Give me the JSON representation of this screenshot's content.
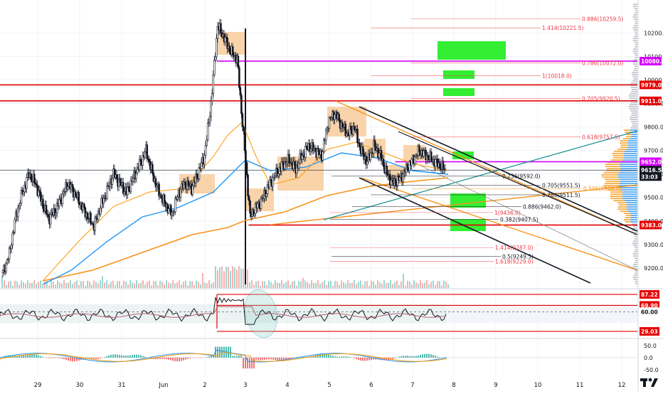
{
  "colors": {
    "bull": "#26a69a",
    "bear": "#ef5350",
    "candle": "#131722",
    "red_line": "#e50000",
    "magenta_line": "#d500f9",
    "fib_red": "#f23645",
    "orange_line": "#f7931a",
    "orange_thin": "#ff9800",
    "blue_ma": "#2196f3",
    "teal_line": "#138d8d",
    "green_box": "#33ee33",
    "orange_box": "#f7c58f",
    "volume_blue": "#4aa3f0",
    "volume_orange": "#f7a93a",
    "grid": "#f0f3fa",
    "axis_text": "#131722",
    "black_label_bg": "#131722"
  },
  "chart_data": [
    {
      "type": "candlestick",
      "title": "",
      "x_ticks": [
        "29",
        "30",
        "31",
        "Jun",
        "2",
        "3",
        "4",
        "5",
        "6",
        "7",
        "8",
        "9",
        "10",
        "11",
        "12"
      ],
      "y_ticks": [
        9200.0,
        9300.0,
        9400.0,
        9500.0,
        9600.0,
        9700.0,
        9800.0,
        9900.0,
        10000.0,
        10100.0,
        10200.0
      ],
      "ylim": [
        9115,
        10340
      ],
      "price_labels": [
        {
          "text": "10080.0",
          "value": 10080.0,
          "color": "#d500f9"
        },
        {
          "text": "9979.0",
          "value": 9979.0,
          "color": "#e50000"
        },
        {
          "text": "9911.0",
          "value": 9911.0,
          "color": "#e50000"
        },
        {
          "text": "9652.0",
          "value": 9652.0,
          "color": "#d500f9"
        },
        {
          "text": "9616.5",
          "value": 9616.5,
          "color": "#131722"
        },
        {
          "text": "33:03",
          "value": 9589.0,
          "color": "#131722"
        },
        {
          "text": "9383.0",
          "value": 9383.0,
          "color": "#e50000"
        }
      ],
      "horizontal_levels": [
        {
          "value": 10080,
          "color": "#d500f9",
          "x_start": 0.34
        },
        {
          "value": 9979,
          "color": "#e50000",
          "x_start": 0.0
        },
        {
          "value": 9911,
          "color": "#e50000",
          "x_start": 0.0
        },
        {
          "value": 9652,
          "color": "#d500f9",
          "x_start": 0.62
        },
        {
          "value": 9383,
          "color": "#e50000",
          "x_start": 0.39
        }
      ],
      "fib_levels": [
        {
          "label": "0.886(10259.5)",
          "value": 10259.5,
          "color": "#f23645"
        },
        {
          "label": "1.414(10221.5)",
          "value": 10221.5,
          "color": "#f23645"
        },
        {
          "label": "0.786(10072.0)",
          "value": 10072.0,
          "color": "#f23645"
        },
        {
          "label": "1(10018.0)",
          "value": 10018.0,
          "color": "#f23645"
        },
        {
          "label": "0.705(9920.5)",
          "value": 9920.5,
          "color": "#f23645"
        },
        {
          "label": "0.618(9757.5)",
          "value": 9757.5,
          "color": "#f23645"
        },
        {
          "label": "0.236(9592.0)",
          "value": 9592.0,
          "color": "#131722"
        },
        {
          "label": "0.705(9551.5)",
          "value": 9551.5,
          "color": "#131722"
        },
        {
          "label": "0.786(9511.5)",
          "value": 9511.5,
          "color": "#131722"
        },
        {
          "label": "0.886(9462.0)",
          "value": 9462.0,
          "color": "#131722"
        },
        {
          "label": "0.382(9407.5)",
          "value": 9407.5,
          "color": "#131722"
        },
        {
          "label": "1.414(9287.0)",
          "value": 9287.0,
          "color": "#f23645"
        },
        {
          "label": "0.5(9249.5)",
          "value": 9249.5,
          "color": "#131722"
        },
        {
          "label": "1.618(9229.0)",
          "value": 9229.0,
          "color": "#f23645"
        },
        {
          "label": "0.505(9538.0)",
          "value": 9538.0,
          "color": "#f7931a"
        },
        {
          "label": "1(9436.0)",
          "value": 9436.0,
          "color": "#f23645"
        }
      ],
      "ohlc_path": [
        9180,
        9260,
        9420,
        9520,
        9600,
        9560,
        9480,
        9410,
        9440,
        9500,
        9560,
        9520,
        9470,
        9420,
        9380,
        9460,
        9530,
        9600,
        9560,
        9520,
        9580,
        9640,
        9700,
        9600,
        9520,
        9470,
        9430,
        9520,
        9560,
        9540,
        9600,
        9680,
        9900,
        10230,
        10180,
        10120,
        10090,
        9760,
        9420,
        9460,
        9500,
        9560,
        9600,
        9640,
        9660,
        9620,
        9680,
        9720,
        9700,
        9680,
        9820,
        9860,
        9810,
        9770,
        9800,
        9700,
        9650,
        9720,
        9680,
        9600,
        9560,
        9580,
        9620,
        9660,
        9700,
        9680,
        9660,
        9640,
        9616.5
      ]
    },
    {
      "type": "oscillator",
      "name": "RSI",
      "ylim": [
        20,
        95
      ],
      "levels": [
        {
          "text": "87.22",
          "value": 87.22,
          "color": "#e50000"
        },
        {
          "text": "69.90",
          "value": 69.9,
          "color": "#e50000"
        },
        {
          "text": "60.00",
          "value": 60.0,
          "color": "#131722"
        },
        {
          "text": "29.03",
          "value": 29.03,
          "color": "#e50000"
        }
      ],
      "band_upper": 72,
      "band_lower": 42
    },
    {
      "type": "histogram",
      "name": "MACD",
      "y_ticks": [
        "50.0",
        "0.0",
        "-50.0"
      ],
      "ylim": [
        -80,
        70
      ]
    }
  ]
}
